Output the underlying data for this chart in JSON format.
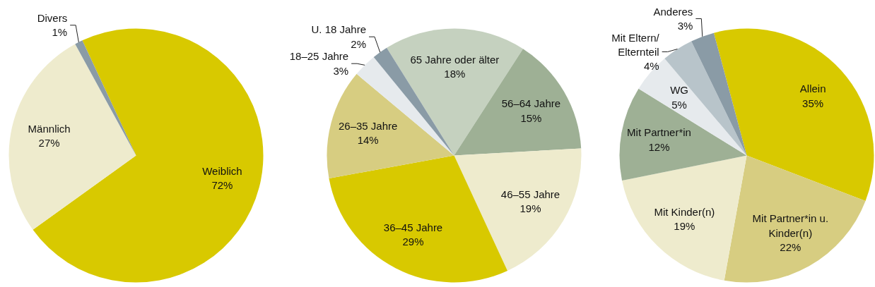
{
  "chart_data": [
    {
      "type": "pie",
      "categories": [
        "Weiblich",
        "Männlich",
        "Divers"
      ],
      "values": [
        72,
        27,
        1
      ],
      "value_labels": [
        "72%",
        "27%",
        "1%"
      ],
      "colors": [
        "#d8c900",
        "#eeebcd",
        "#8a9ba6"
      ]
    },
    {
      "type": "pie",
      "categories": [
        "65 Jahre oder älter",
        "56–64 Jahre",
        "46–55 Jahre",
        "36–45 Jahre",
        "26–35 Jahre",
        "18–25 Jahre",
        "U. 18 Jahre"
      ],
      "values": [
        18,
        15,
        19,
        29,
        14,
        3,
        2
      ],
      "value_labels": [
        "18%",
        "15%",
        "19%",
        "29%",
        "14%",
        "3%",
        "2%"
      ],
      "colors": [
        "#c5d1bf",
        "#9eb095",
        "#eeebcd",
        "#d8c900",
        "#d7cd81",
        "#e6eaed",
        "#8a9ba6"
      ]
    },
    {
      "type": "pie",
      "categories": [
        "Allein",
        "Mit Partner*in u.\nKinder(n)",
        "Mit Kinder(n)",
        "Mit Partner*in",
        "WG",
        "Mit Eltern/\nElternteil",
        "Anderes"
      ],
      "values": [
        35,
        22,
        19,
        12,
        5,
        4,
        3
      ],
      "value_labels": [
        "35%",
        "22%",
        "19%",
        "12%",
        "5%",
        "4%",
        "3%"
      ],
      "colors": [
        "#d8c900",
        "#d7cd81",
        "#eeebcd",
        "#9eb095",
        "#e6eaed",
        "#b8c4ca",
        "#8a9ba6"
      ]
    }
  ]
}
